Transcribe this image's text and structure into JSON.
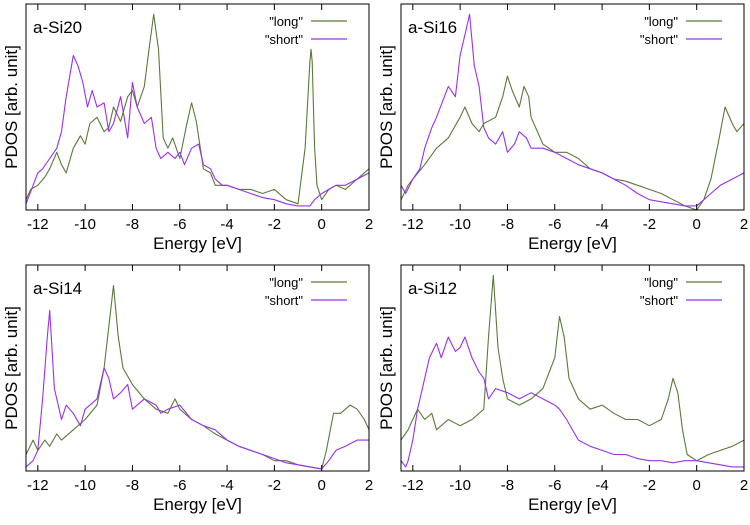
{
  "chart_data": [
    {
      "type": "line",
      "title": "a-Si20",
      "xlabel": "Energy [eV]",
      "ylabel": "PDOS [arb. unit]",
      "xlim": [
        -12.5,
        2
      ],
      "ylim": [
        0,
        1
      ],
      "xticks": [
        -12,
        -10,
        -8,
        -6,
        -4,
        -2,
        0,
        2
      ],
      "xtick_labels": [
        "-12",
        "-10",
        "-8",
        "-6",
        "-4",
        "-2",
        "0",
        "2"
      ],
      "legend_position": "top-right",
      "series": [
        {
          "name": "\"long\"",
          "color": "#5a7a3a",
          "x": [
            -12.5,
            -12.3,
            -12.0,
            -11.7,
            -11.5,
            -11.2,
            -11.0,
            -10.8,
            -10.5,
            -10.2,
            -10.0,
            -9.8,
            -9.5,
            -9.2,
            -9.0,
            -8.8,
            -8.5,
            -8.2,
            -8.0,
            -7.8,
            -7.5,
            -7.3,
            -7.1,
            -6.9,
            -6.7,
            -6.5,
            -6.3,
            -6.0,
            -5.7,
            -5.5,
            -5.3,
            -5.0,
            -4.7,
            -4.5,
            -4.0,
            -3.5,
            -3.0,
            -2.5,
            -2.0,
            -1.5,
            -1.0,
            -0.7,
            -0.5,
            -0.45,
            -0.4,
            -0.3,
            -0.2,
            0.0,
            0.3,
            0.6,
            1.0,
            1.5,
            2.0
          ],
          "values": [
            0.05,
            0.1,
            0.12,
            0.16,
            0.2,
            0.28,
            0.22,
            0.18,
            0.3,
            0.36,
            0.32,
            0.42,
            0.45,
            0.38,
            0.4,
            0.5,
            0.43,
            0.55,
            0.58,
            0.5,
            0.6,
            0.78,
            0.95,
            0.78,
            0.35,
            0.3,
            0.35,
            0.25,
            0.42,
            0.52,
            0.43,
            0.2,
            0.18,
            0.12,
            0.12,
            0.1,
            0.1,
            0.08,
            0.1,
            0.05,
            0.03,
            0.3,
            0.72,
            0.78,
            0.72,
            0.3,
            0.12,
            0.05,
            0.1,
            0.12,
            0.1,
            0.15,
            0.2
          ]
        },
        {
          "name": "\"short\"",
          "color": "#9b30e8",
          "x": [
            -12.5,
            -12.2,
            -12.0,
            -11.8,
            -11.5,
            -11.2,
            -11.0,
            -10.8,
            -10.5,
            -10.3,
            -10.1,
            -9.9,
            -9.7,
            -9.5,
            -9.2,
            -9.0,
            -8.8,
            -8.5,
            -8.2,
            -8.0,
            -7.8,
            -7.5,
            -7.2,
            -7.0,
            -6.8,
            -6.5,
            -6.2,
            -6.0,
            -5.8,
            -5.5,
            -5.2,
            -5.0,
            -4.7,
            -4.5,
            -4.2,
            -4.0,
            -3.5,
            -3.0,
            -2.5,
            -2.0,
            -1.5,
            -1.0,
            -0.5,
            -0.3,
            0.0,
            0.3,
            0.6,
            1.0,
            1.5,
            2.0
          ],
          "values": [
            0.03,
            0.12,
            0.18,
            0.2,
            0.25,
            0.3,
            0.38,
            0.55,
            0.75,
            0.7,
            0.62,
            0.5,
            0.58,
            0.5,
            0.52,
            0.38,
            0.42,
            0.55,
            0.35,
            0.62,
            0.5,
            0.42,
            0.45,
            0.3,
            0.25,
            0.28,
            0.25,
            0.28,
            0.22,
            0.3,
            0.32,
            0.22,
            0.2,
            0.15,
            0.12,
            0.12,
            0.1,
            0.08,
            0.06,
            0.05,
            0.03,
            0.02,
            0.02,
            0.05,
            0.08,
            0.1,
            0.12,
            0.12,
            0.15,
            0.18
          ]
        }
      ]
    },
    {
      "type": "line",
      "title": "a-Si16",
      "xlabel": "Energy [eV]",
      "ylabel": "PDOS [arb. unit]",
      "xlim": [
        -12.5,
        2
      ],
      "ylim": [
        0,
        1
      ],
      "xticks": [
        -12,
        -10,
        -8,
        -6,
        -4,
        -2,
        0,
        2
      ],
      "xtick_labels": [
        "-12",
        "-10",
        "-8",
        "-6",
        "-4",
        "-2",
        "0",
        "2"
      ],
      "legend_position": "top-right",
      "series": [
        {
          "name": "\"long\"",
          "color": "#5a7a3a",
          "x": [
            -12.5,
            -12.2,
            -12.0,
            -11.5,
            -11.0,
            -10.5,
            -10.0,
            -9.8,
            -9.5,
            -9.2,
            -9.0,
            -8.5,
            -8.2,
            -8.0,
            -7.8,
            -7.5,
            -7.3,
            -7.1,
            -7.0,
            -6.5,
            -6.0,
            -5.5,
            -5.0,
            -4.5,
            -4.0,
            -3.5,
            -3.0,
            -2.5,
            -2.0,
            -1.5,
            -1.0,
            -0.5,
            0.0,
            0.3,
            0.6,
            0.9,
            1.2,
            1.5,
            1.7,
            2.0
          ],
          "values": [
            0.05,
            0.12,
            0.15,
            0.22,
            0.3,
            0.35,
            0.45,
            0.5,
            0.42,
            0.38,
            0.42,
            0.45,
            0.55,
            0.65,
            0.58,
            0.5,
            0.6,
            0.55,
            0.45,
            0.32,
            0.28,
            0.28,
            0.25,
            0.2,
            0.18,
            0.15,
            0.14,
            0.12,
            0.1,
            0.08,
            0.05,
            0.02,
            0.0,
            0.05,
            0.15,
            0.32,
            0.5,
            0.42,
            0.38,
            0.42
          ]
        },
        {
          "name": "\"short\"",
          "color": "#9b30e8",
          "x": [
            -12.5,
            -12.3,
            -12.0,
            -11.7,
            -11.5,
            -11.2,
            -11.0,
            -10.5,
            -10.2,
            -10.0,
            -9.8,
            -9.6,
            -9.4,
            -9.2,
            -9.0,
            -8.8,
            -8.5,
            -8.2,
            -8.0,
            -7.7,
            -7.5,
            -7.2,
            -7.0,
            -6.5,
            -6.0,
            -5.5,
            -5.0,
            -4.5,
            -4.0,
            -3.5,
            -3.0,
            -2.5,
            -2.0,
            -1.5,
            -1.0,
            -0.5,
            0.0,
            0.3,
            0.6,
            1.0,
            1.5,
            2.0
          ],
          "values": [
            0.12,
            0.08,
            0.15,
            0.2,
            0.3,
            0.4,
            0.45,
            0.6,
            0.55,
            0.75,
            0.85,
            0.95,
            0.7,
            0.6,
            0.4,
            0.35,
            0.32,
            0.38,
            0.28,
            0.32,
            0.38,
            0.35,
            0.3,
            0.3,
            0.28,
            0.25,
            0.22,
            0.2,
            0.18,
            0.15,
            0.12,
            0.08,
            0.05,
            0.04,
            0.03,
            0.02,
            0.02,
            0.05,
            0.08,
            0.12,
            0.15,
            0.18
          ]
        }
      ]
    },
    {
      "type": "line",
      "title": "a-Si14",
      "xlabel": "Energy [eV]",
      "ylabel": "PDOS [arb. unit]",
      "xlim": [
        -12.5,
        2
      ],
      "ylim": [
        0,
        1
      ],
      "xticks": [
        -12,
        -10,
        -8,
        -6,
        -4,
        -2,
        0,
        2
      ],
      "xtick_labels": [
        "-12",
        "-10",
        "-8",
        "-6",
        "-4",
        "-2",
        "0",
        "2"
      ],
      "legend_position": "top-right",
      "series": [
        {
          "name": "\"long\"",
          "color": "#5a7a3a",
          "x": [
            -12.5,
            -12.2,
            -12.0,
            -11.7,
            -11.5,
            -11.2,
            -11.0,
            -10.5,
            -10.0,
            -9.5,
            -9.2,
            -9.0,
            -8.8,
            -8.6,
            -8.4,
            -8.0,
            -7.5,
            -7.0,
            -6.5,
            -6.2,
            -6.0,
            -5.5,
            -5.0,
            -4.5,
            -4.0,
            -3.5,
            -3.0,
            -2.5,
            -2.0,
            -1.5,
            -1.0,
            -0.5,
            0.0,
            0.2,
            0.5,
            0.8,
            1.2,
            1.5,
            1.8,
            2.0
          ],
          "values": [
            0.08,
            0.15,
            0.1,
            0.15,
            0.12,
            0.18,
            0.15,
            0.2,
            0.25,
            0.32,
            0.5,
            0.7,
            0.9,
            0.65,
            0.5,
            0.42,
            0.35,
            0.3,
            0.28,
            0.35,
            0.3,
            0.25,
            0.22,
            0.18,
            0.15,
            0.12,
            0.1,
            0.08,
            0.05,
            0.05,
            0.03,
            0.02,
            0.01,
            0.1,
            0.28,
            0.28,
            0.32,
            0.3,
            0.25,
            0.2
          ]
        },
        {
          "name": "\"short\"",
          "color": "#9b30e8",
          "x": [
            -12.5,
            -12.2,
            -12.0,
            -11.8,
            -11.6,
            -11.5,
            -11.3,
            -11.0,
            -10.8,
            -10.5,
            -10.2,
            -10.0,
            -9.5,
            -9.2,
            -9.0,
            -8.8,
            -8.5,
            -8.2,
            -8.0,
            -7.5,
            -7.0,
            -6.8,
            -6.5,
            -6.0,
            -5.5,
            -5.0,
            -4.5,
            -4.0,
            -3.5,
            -3.0,
            -2.5,
            -2.0,
            -1.5,
            -1.0,
            -0.5,
            0.0,
            0.3,
            0.6,
            1.0,
            1.5,
            2.0
          ],
          "values": [
            0.02,
            0.05,
            0.1,
            0.35,
            0.65,
            0.78,
            0.4,
            0.25,
            0.32,
            0.28,
            0.22,
            0.3,
            0.35,
            0.5,
            0.45,
            0.35,
            0.38,
            0.42,
            0.3,
            0.35,
            0.32,
            0.28,
            0.3,
            0.32,
            0.25,
            0.22,
            0.2,
            0.15,
            0.12,
            0.1,
            0.08,
            0.06,
            0.04,
            0.03,
            0.02,
            0.01,
            0.05,
            0.1,
            0.12,
            0.15,
            0.15
          ]
        }
      ]
    },
    {
      "type": "line",
      "title": "a-Si12",
      "xlabel": "Energy [eV]",
      "ylabel": "PDOS [arb. unit]",
      "xlim": [
        -12.5,
        2
      ],
      "ylim": [
        0,
        1
      ],
      "xticks": [
        -12,
        -10,
        -8,
        -6,
        -4,
        -2,
        0,
        2
      ],
      "xtick_labels": [
        "-12",
        "-10",
        "-8",
        "-6",
        "-4",
        "-2",
        "0",
        "2"
      ],
      "legend_position": "top-right",
      "series": [
        {
          "name": "\"long\"",
          "color": "#5a7a3a",
          "x": [
            -12.5,
            -12.2,
            -12.0,
            -11.8,
            -11.5,
            -11.2,
            -11.0,
            -10.5,
            -10.0,
            -9.5,
            -9.0,
            -8.8,
            -8.6,
            -8.4,
            -8.2,
            -8.0,
            -7.5,
            -7.0,
            -6.5,
            -6.0,
            -5.8,
            -5.6,
            -5.4,
            -5.0,
            -4.5,
            -4.0,
            -3.5,
            -3.0,
            -2.5,
            -2.0,
            -1.5,
            -1.2,
            -1.0,
            -0.8,
            -0.6,
            -0.4,
            0.0,
            0.5,
            1.0,
            1.5,
            2.0
          ],
          "values": [
            0.15,
            0.2,
            0.25,
            0.3,
            0.25,
            0.28,
            0.2,
            0.25,
            0.22,
            0.25,
            0.3,
            0.65,
            0.95,
            0.6,
            0.45,
            0.35,
            0.32,
            0.35,
            0.4,
            0.55,
            0.75,
            0.65,
            0.45,
            0.35,
            0.3,
            0.32,
            0.28,
            0.25,
            0.25,
            0.22,
            0.25,
            0.35,
            0.45,
            0.38,
            0.2,
            0.08,
            0.05,
            0.08,
            0.1,
            0.12,
            0.15
          ]
        },
        {
          "name": "\"short\"",
          "color": "#9b30e8",
          "x": [
            -12.5,
            -12.3,
            -12.2,
            -12.0,
            -11.8,
            -11.5,
            -11.3,
            -11.0,
            -10.8,
            -10.5,
            -10.2,
            -10.0,
            -9.8,
            -9.5,
            -9.2,
            -9.0,
            -8.8,
            -8.5,
            -8.0,
            -7.5,
            -7.0,
            -6.5,
            -6.0,
            -5.8,
            -5.5,
            -5.0,
            -4.5,
            -4.0,
            -3.5,
            -3.0,
            -2.5,
            -2.0,
            -1.5,
            -1.0,
            -0.5,
            0.0,
            0.5,
            1.0,
            1.5,
            2.0
          ],
          "values": [
            0.05,
            0.02,
            0.05,
            0.15,
            0.3,
            0.45,
            0.55,
            0.62,
            0.55,
            0.65,
            0.58,
            0.6,
            0.65,
            0.55,
            0.48,
            0.45,
            0.35,
            0.4,
            0.38,
            0.35,
            0.38,
            0.35,
            0.32,
            0.3,
            0.25,
            0.15,
            0.12,
            0.1,
            0.08,
            0.08,
            0.06,
            0.05,
            0.05,
            0.04,
            0.05,
            0.05,
            0.04,
            0.03,
            0.02,
            0.02
          ]
        }
      ]
    }
  ]
}
